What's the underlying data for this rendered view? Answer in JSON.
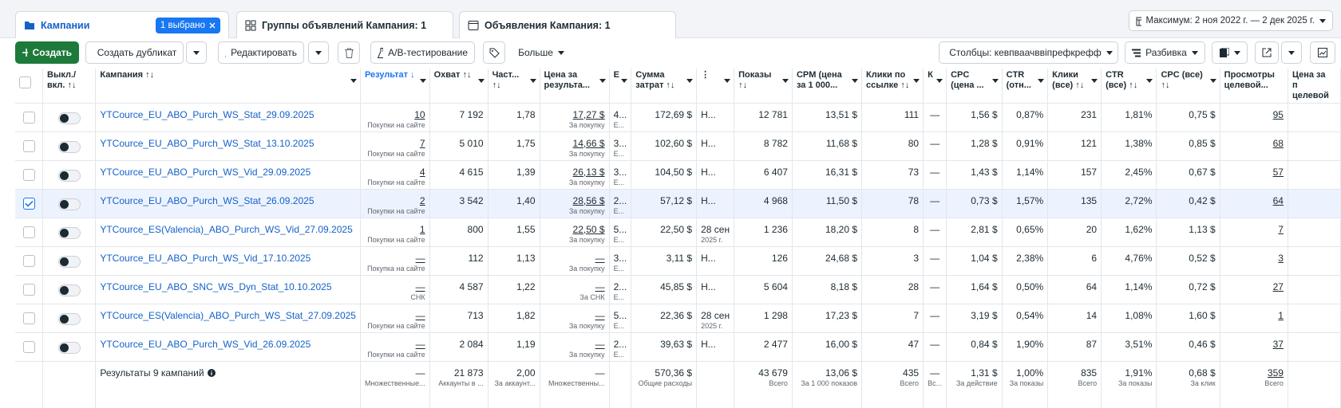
{
  "tabs": [
    {
      "label": "Кампании",
      "badge": "1 выбрано"
    },
    {
      "label": "Группы объявлений Кампания: 1"
    },
    {
      "label": "Объявления Кампания: 1"
    }
  ],
  "date_range": "Максимум: 2 ноя 2022 г. — 2 дек 2025 г.",
  "toolbar": {
    "create": "Создать",
    "duplicate": "Создать дубликат",
    "edit": "Редактировать",
    "ab_test": "A/B-тестирование",
    "more": "Больше",
    "columns": "Столбцы: кевпваачввіпрефкрефф",
    "breakdown": "Разбивка"
  },
  "table": {
    "headers": [
      "Выкл./ вкл. ↑↓",
      "Кампания ↑↓",
      "Результат ↓",
      "Охват ↑↓",
      "Част... ↑↓",
      "Цена за результа...",
      "Е",
      "Сумма затрат ↑↓",
      "⋮",
      "Показы ↑↓",
      "CPM (цена за 1 000...",
      "Клики по ссылке ↑↓",
      "К",
      "CPC (цена ...",
      "CTR (отн...",
      "Клики (все) ↑↓",
      "CTR (все) ↑↓",
      "CPC (все) ↑↓",
      "Просмотры целевой...",
      "Цена за п целевой"
    ],
    "rows": [
      {
        "cells": [
          "YTCource_EU_ABO_Purch_WS_Stat_29.09.2025",
          {
            "t": "10",
            "s": "Покупки на сайте"
          },
          "7 192",
          "1,78",
          {
            "t": "17,27 $",
            "s": "За покупку"
          },
          {
            "t": "4...",
            "s": "Е..."
          },
          "172,69 $",
          "Н...",
          "12 781",
          "13,51 $",
          "111",
          "—",
          "1,56 $",
          "0,87%",
          "231",
          "1,81%",
          "0,75 $",
          "95"
        ]
      },
      {
        "cells": [
          "YTCource_EU_ABO_Purch_WS_Stat_13.10.2025",
          {
            "t": "7",
            "s": "Покупки на сайте"
          },
          "5 010",
          "1,75",
          {
            "t": "14,66 $",
            "s": "За покупку"
          },
          {
            "t": "3...",
            "s": "Е..."
          },
          "102,60 $",
          "Н...",
          "8 782",
          "11,68 $",
          "80",
          "—",
          "1,28 $",
          "0,91%",
          "121",
          "1,38%",
          "0,85 $",
          "68"
        ]
      },
      {
        "cells": [
          "YTCource_EU_ABO_Purch_WS_Vid_29.09.2025",
          {
            "t": "4",
            "s": "Покупки на сайте"
          },
          "4 615",
          "1,39",
          {
            "t": "26,13 $",
            "s": "За покупку"
          },
          {
            "t": "3...",
            "s": "Е..."
          },
          "104,50 $",
          "Н...",
          "6 407",
          "16,31 $",
          "73",
          "—",
          "1,43 $",
          "1,14%",
          "157",
          "2,45%",
          "0,67 $",
          "57"
        ]
      },
      {
        "selected": true,
        "cells": [
          "YTCource_EU_ABO_Purch_WS_Stat_26.09.2025",
          {
            "t": "2",
            "s": "Покупки на сайте"
          },
          "3 542",
          "1,40",
          {
            "t": "28,56 $",
            "s": "За покупку"
          },
          {
            "t": "2...",
            "s": "Е..."
          },
          "57,12 $",
          "Н...",
          "4 968",
          "11,50 $",
          "78",
          "—",
          "0,73 $",
          "1,57%",
          "135",
          "2,72%",
          "0,42 $",
          "64"
        ]
      },
      {
        "cells": [
          "YTCource_ES(Valencia)_ABO_Purch_WS_Vid_27.09.2025",
          {
            "t": "1",
            "s": "Покупки на сайте"
          },
          "800",
          "1,55",
          {
            "t": "22,50 $",
            "s": "За покупку"
          },
          {
            "t": "5...",
            "s": "Е..."
          },
          "22,50 $",
          {
            "t": "28 сен",
            "s": "2025 г."
          },
          "1 236",
          "18,20 $",
          "8",
          "—",
          "2,81 $",
          "0,65%",
          "20",
          "1,62%",
          "1,13 $",
          "7"
        ]
      },
      {
        "cells": [
          "YTCource_EU_ABO_Purch_WS_Vid_17.10.2025",
          {
            "t": "—",
            "s": "Покупка на сайте"
          },
          "112",
          "1,13",
          {
            "t": "—",
            "s": "За покупку"
          },
          {
            "t": "3...",
            "s": "Е..."
          },
          "3,11 $",
          "Н...",
          "126",
          "24,68 $",
          "3",
          "—",
          "1,04 $",
          "2,38%",
          "6",
          "4,76%",
          "0,52 $",
          "3"
        ]
      },
      {
        "cells": [
          "YTCource_EU_ABO_SNC_WS_Dyn_Stat_10.10.2025",
          {
            "t": "—",
            "s": "СНК"
          },
          "4 587",
          "1,22",
          {
            "t": "—",
            "s": "За СНК"
          },
          {
            "t": "2...",
            "s": "Е..."
          },
          "45,85 $",
          "Н...",
          "5 604",
          "8,18 $",
          "28",
          "—",
          "1,64 $",
          "0,50%",
          "64",
          "1,14%",
          "0,72 $",
          "27"
        ]
      },
      {
        "cells": [
          "YTCource_ES(Valencia)_ABO_Purch_WS_Stat_27.09.2025",
          {
            "t": "—",
            "s": "Покупки на сайте"
          },
          "713",
          "1,82",
          {
            "t": "—",
            "s": "За покупку"
          },
          {
            "t": "5...",
            "s": "Е..."
          },
          "22,36 $",
          {
            "t": "28 сен",
            "s": "2025 г."
          },
          "1 298",
          "17,23 $",
          "7",
          "—",
          "3,19 $",
          "0,54%",
          "14",
          "1,08%",
          "1,60 $",
          "1"
        ]
      },
      {
        "cells": [
          "YTCource_EU_ABO_Purch_WS_Vid_26.09.2025",
          {
            "t": "—",
            "s": "Покупки на сайте"
          },
          "2 084",
          "1,19",
          {
            "t": "—",
            "s": "За покупку"
          },
          {
            "t": "2...",
            "s": "Е..."
          },
          "39,63 $",
          "Н...",
          "2 477",
          "16,00 $",
          "47",
          "—",
          "0,84 $",
          "1,90%",
          "87",
          "3,51%",
          "0,46 $",
          "37"
        ]
      }
    ],
    "totals": {
      "label": "Результаты 9 кампаний",
      "cells": [
        {
          "t": "—",
          "s": "Множественные..."
        },
        {
          "t": "21 873",
          "s": "Аккаунты в ..."
        },
        {
          "t": "2,00",
          "s": "За аккаунт..."
        },
        {
          "t": "—",
          "s": "Множественны..."
        },
        null,
        {
          "t": "570,36 $",
          "s": "Общие расходы"
        },
        null,
        {
          "t": "43 679",
          "s": "Всего"
        },
        {
          "t": "13,06 $",
          "s": "За 1 000 показов"
        },
        {
          "t": "435",
          "s": "Всего"
        },
        {
          "t": "—",
          "s": "Вс..."
        },
        {
          "t": "1,31 $",
          "s": "За действие"
        },
        {
          "t": "1,00%",
          "s": "За показы"
        },
        {
          "t": "835",
          "s": "Всего"
        },
        {
          "t": "1,91%",
          "s": "За показы"
        },
        {
          "t": "0,68 $",
          "s": "За клик"
        },
        {
          "t": "359",
          "s": "Всего"
        }
      ]
    }
  }
}
